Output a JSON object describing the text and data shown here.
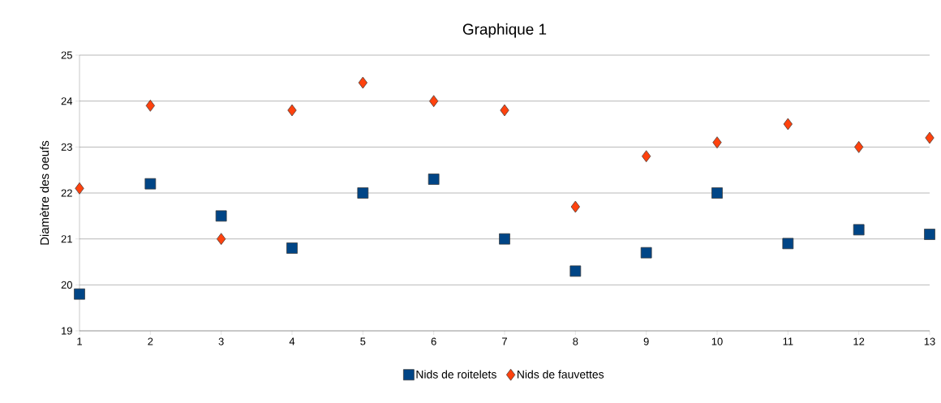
{
  "chart_data": {
    "type": "scatter",
    "title": "Graphique 1",
    "ylabel": "Diamètre des oeufs",
    "x": [
      1,
      2,
      3,
      4,
      5,
      6,
      7,
      8,
      9,
      10,
      11,
      12,
      13
    ],
    "series": [
      {
        "name": "Nids de roitelets",
        "color": "#004586",
        "marker": "square",
        "values": [
          19.8,
          22.2,
          21.5,
          20.8,
          22.0,
          22.3,
          21.0,
          20.3,
          20.7,
          22.0,
          20.9,
          21.2,
          21.1
        ]
      },
      {
        "name": "Nids de fauvettes",
        "color": "#ff420e",
        "marker": "diamond",
        "values": [
          22.1,
          23.9,
          21.0,
          23.8,
          24.4,
          24.0,
          23.8,
          21.7,
          22.8,
          23.1,
          23.5,
          23.0,
          23.2
        ]
      }
    ],
    "xlim": [
      1,
      13
    ],
    "xticks": [
      1,
      2,
      3,
      4,
      5,
      6,
      7,
      8,
      9,
      10,
      11,
      12,
      13
    ],
    "ylim": [
      19,
      25
    ],
    "yticks": [
      19,
      20,
      21,
      22,
      23,
      24,
      25
    ],
    "grid": "y",
    "legend": "bottom"
  }
}
